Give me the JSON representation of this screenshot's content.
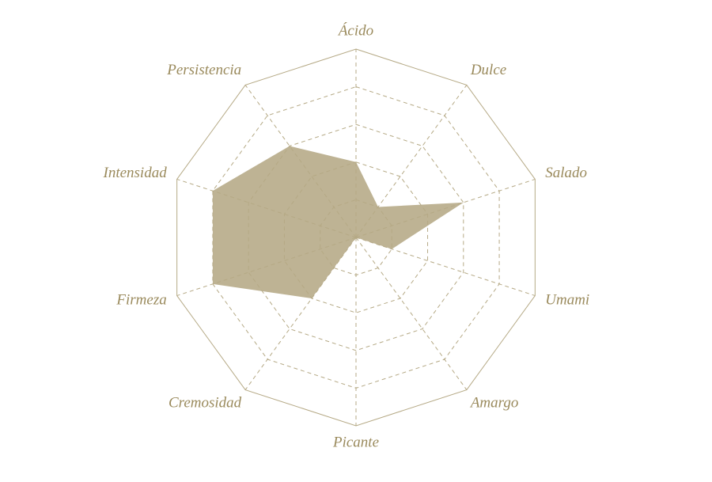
{
  "chart_data": {
    "type": "radar",
    "categories": [
      "Ácido",
      "Dulce",
      "Salado",
      "Umami",
      "Amargo",
      "Picante",
      "Cremosidad",
      "Firmeza",
      "Intensidad",
      "Persistencia"
    ],
    "values": [
      2,
      1,
      3,
      1,
      0,
      0,
      2,
      4,
      4,
      3
    ],
    "color": "#b3a681",
    "rlim": [
      0,
      5
    ],
    "rticks": [
      1,
      2,
      3,
      4,
      5
    ]
  }
}
